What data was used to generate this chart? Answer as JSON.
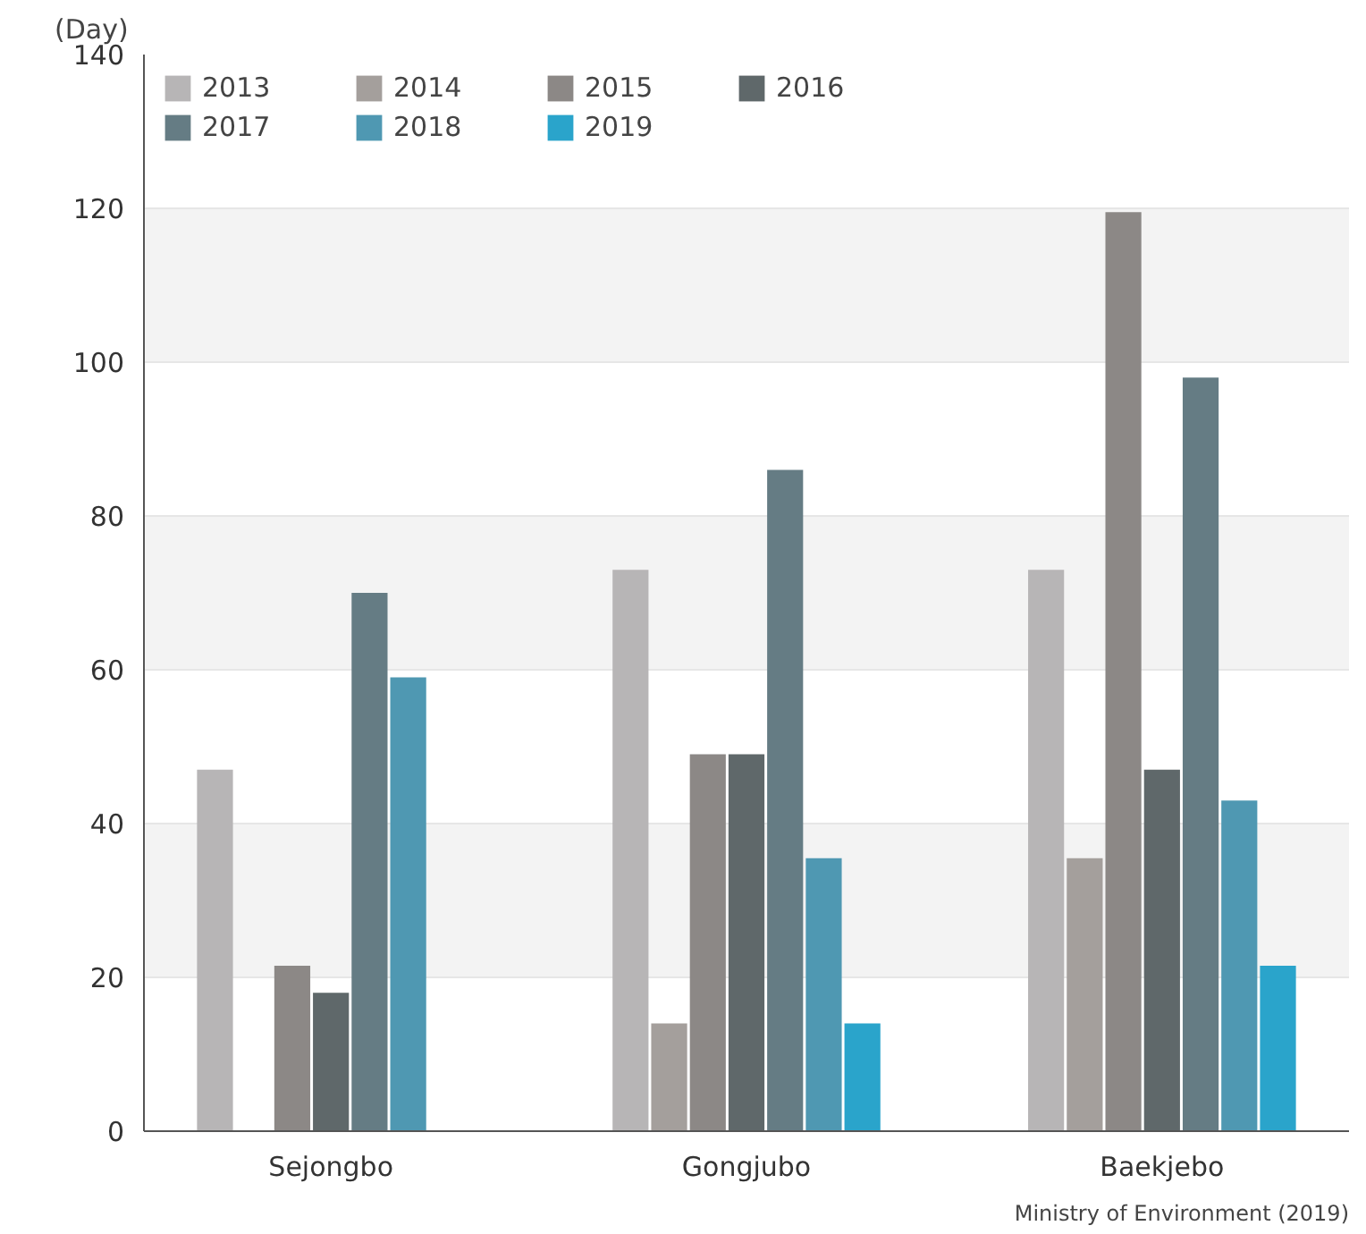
{
  "chart_data": {
    "type": "bar",
    "ylabel": "(Day)",
    "categories": [
      "Sejongbo",
      "Gongjubo",
      "Baekjebo"
    ],
    "series": [
      {
        "name": "2013",
        "color": "#b7b5b6",
        "values": [
          47,
          73,
          73
        ]
      },
      {
        "name": "2014",
        "color": "#a49f9c",
        "values": [
          null,
          14,
          35.5
        ]
      },
      {
        "name": "2015",
        "color": "#8c8886",
        "values": [
          21.5,
          49,
          119.5
        ]
      },
      {
        "name": "2016",
        "color": "#5f686a",
        "values": [
          18,
          49,
          47
        ]
      },
      {
        "name": "2017",
        "color": "#657c84",
        "values": [
          70,
          86,
          98
        ]
      },
      {
        "name": "2018",
        "color": "#4f98b2",
        "values": [
          59,
          35.5,
          43
        ]
      },
      {
        "name": "2019",
        "color": "#2aa4cb",
        "values": [
          null,
          14,
          21.5
        ]
      }
    ],
    "ylim": [
      0,
      140
    ],
    "yticks": [
      0,
      20,
      40,
      60,
      80,
      100,
      120,
      140
    ],
    "grid": "y",
    "legend": "top left",
    "annotations": [
      "Ministry of Environment (2019)"
    ]
  }
}
